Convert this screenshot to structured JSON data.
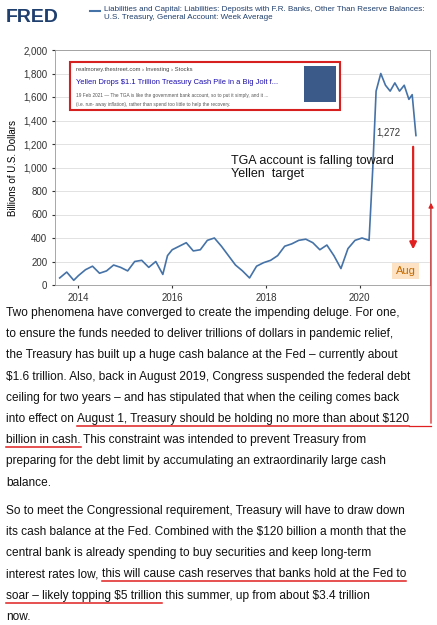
{
  "chart_data": {
    "type": "line",
    "logo": "FRED",
    "y_label": "Billions of U.S. Dollars",
    "x": [
      2013.6,
      2013.75,
      2013.9,
      2014.0,
      2014.15,
      2014.3,
      2014.45,
      2014.6,
      2014.75,
      2014.9,
      2015.05,
      2015.2,
      2015.35,
      2015.5,
      2015.65,
      2015.8,
      2015.9,
      2016.0,
      2016.15,
      2016.3,
      2016.45,
      2016.6,
      2016.75,
      2016.9,
      2017.05,
      2017.2,
      2017.35,
      2017.5,
      2017.65,
      2017.8,
      2017.95,
      2018.1,
      2018.25,
      2018.4,
      2018.55,
      2018.7,
      2018.85,
      2019.0,
      2019.15,
      2019.3,
      2019.45,
      2019.6,
      2019.75,
      2019.9,
      2020.05,
      2020.2,
      2020.28,
      2020.35,
      2020.45,
      2020.55,
      2020.65,
      2020.75,
      2020.85,
      2020.95,
      2021.05,
      2021.12,
      2021.2
    ],
    "series": [
      {
        "name": "Liabilities and Capital: Liabilities: Deposits with F.R. Banks, Other Than Reserve Balances: U.S. Treasury, General Account: Week Average",
        "color": "#4572a7",
        "values": [
          60,
          110,
          40,
          80,
          130,
          160,
          100,
          120,
          170,
          150,
          120,
          200,
          210,
          150,
          200,
          90,
          250,
          300,
          330,
          360,
          290,
          300,
          380,
          400,
          330,
          250,
          170,
          120,
          60,
          160,
          190,
          210,
          250,
          330,
          350,
          380,
          390,
          360,
          300,
          340,
          250,
          140,
          310,
          380,
          400,
          380,
          1000,
          1650,
          1800,
          1700,
          1650,
          1720,
          1650,
          1700,
          1580,
          1620,
          1272
        ]
      }
    ],
    "xlim": [
      2013.5,
      2021.5
    ],
    "xticks": [
      2014,
      2016,
      2018,
      2020
    ],
    "ylim": [
      0,
      2000
    ],
    "yticks": [
      0,
      200,
      400,
      600,
      800,
      {
        "value": 1000,
        "label": "1,000"
      },
      {
        "value": 1200,
        "label": "1,200"
      },
      {
        "value": 1400,
        "label": "1,400"
      },
      {
        "value": 1600,
        "label": "1,600"
      },
      {
        "value": 1800,
        "label": "1,800"
      },
      {
        "value": 2000,
        "label": "2,000"
      }
    ],
    "grid": true,
    "annotations": {
      "inset": {
        "source": "realmoney.thestreet.com › Investing › Stocks",
        "headline": "Yellen Drops $1.1 Trillion Treasury Cash Pile in a Big Jolt f...",
        "snippet": [
          "19 Feb 2021 — The TGA is like the government bank account, so to put it simply, and it ...",
          "(i.e. run- away inflation), rather than spend too little to help the recovery."
        ]
      },
      "target_note": [
        "TGA account is falling toward",
        "Yellen  target"
      ],
      "last_value": "1,272",
      "month": "Aug"
    }
  },
  "article": {
    "paragraphs": [
      [
        [
          "Two phenomena have converged to create the impending deluge. For one,"
        ],
        [
          "to ensure the funds needed to deliver trillions of dollars in pandemic relief,"
        ],
        [
          "the Treasury has built up a huge cash balance at the Fed – currently about"
        ],
        [
          "$1.6 trillion. Also, back in August 2019, Congress suspended the federal debt"
        ],
        [
          "ceiling for two years – and has stipulated that when the ceiling comes back"
        ],
        [
          "into effect on ",
          {
            "text": "August 1, Treasury should be holding no more than about $120",
            "underline": true
          }
        ],
        [
          {
            "text": "billion in cash.",
            "underline": true
          },
          " This constraint was intended to prevent Treasury from"
        ],
        [
          "preparing for the debt limit by accumulating an extraordinarily large cash"
        ],
        [
          "balance."
        ]
      ],
      [
        [
          "So to meet the Congressional requirement, Treasury will have to draw down"
        ],
        [
          "its cash balance at the Fed. Combined with the $120 billion a month that the"
        ],
        [
          "central bank is already spending to buy securities and keep long-term"
        ],
        [
          "interest rates low, ",
          {
            "text": "this will cause cash reserves that banks hold at the Fed to",
            "underline": true
          }
        ],
        [
          {
            "text": "soar – likely topping $5 trillion",
            "underline": true
          },
          " this summer, up from about $3.4 trillion"
        ],
        [
          "now."
        ]
      ]
    ]
  }
}
